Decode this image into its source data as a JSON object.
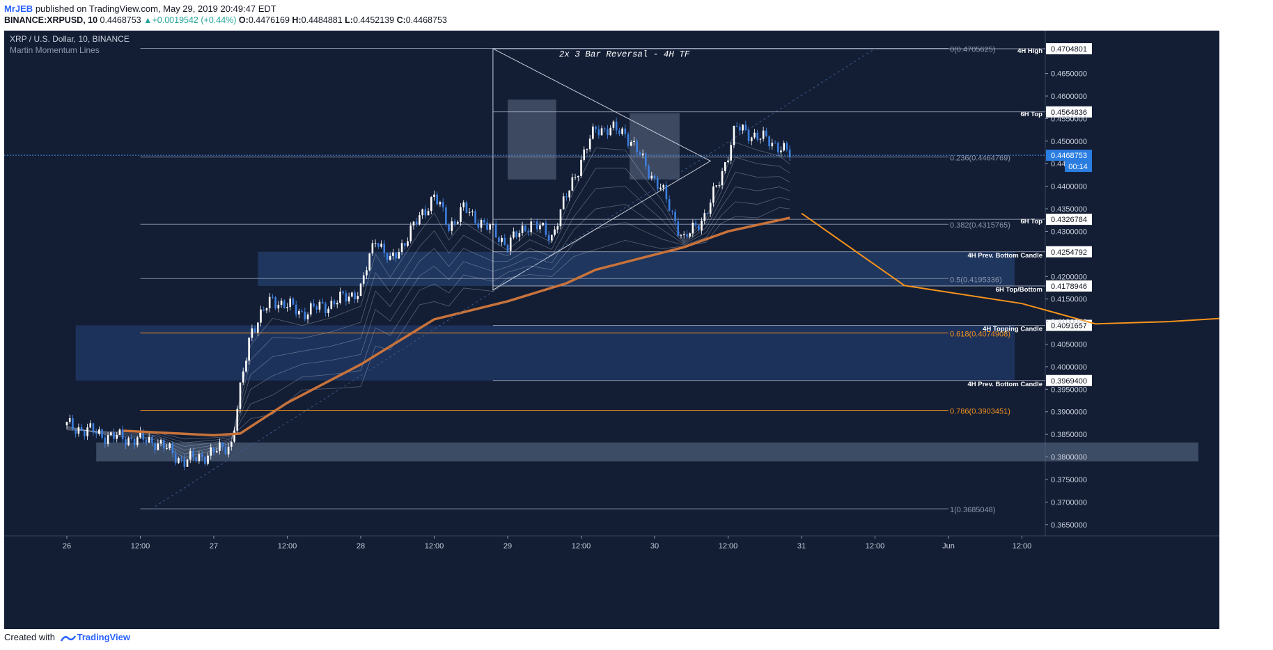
{
  "header": {
    "author": "MrJEB",
    "published_text": "published on TradingView.com, May 29, 2019 20:49:47 EDT",
    "symbol": "BINANCE:XRPUSD, 10",
    "last": "0.4468753",
    "change": "+0.0019542 (+0.44%)",
    "open_label": "O:",
    "open": "0.4476169",
    "high_label": "H:",
    "high": "0.4484881",
    "low_label": "L:",
    "low": "0.4452139",
    "close_label": "C:",
    "close": "0.4468753"
  },
  "footer": {
    "created_with": "Created with",
    "brand": "TradingView"
  },
  "chart_data": {
    "type": "candlestick",
    "title": "XRP / U.S. Dollar, 10, BINANCE",
    "indicator": "Martin Momentum Lines",
    "x_ticks": [
      "26",
      "12:00",
      "27",
      "12:00",
      "28",
      "12:00",
      "29",
      "12:00",
      "30",
      "12:00",
      "31",
      "12:00",
      "Jun",
      "12:00"
    ],
    "y_ticks": [
      "0.4650000",
      "0.4600000",
      "0.4550000",
      "0.4500000",
      "0.4450000",
      "0.4400000",
      "0.4350000",
      "0.4300000",
      "0.4200000",
      "0.4150000",
      "0.4100000",
      "0.4050000",
      "0.4000000",
      "0.3950000",
      "0.3900000",
      "0.3850000",
      "0.3800000",
      "0.3750000",
      "0.3700000",
      "0.3650000"
    ],
    "y_range": [
      0.3625,
      0.4745
    ],
    "current_price": "0.4468753",
    "countdown": "00:14",
    "annotation": "2x 3 Bar Reversal - 4H TF",
    "levels": [
      {
        "label": "4H High",
        "value": 0.4704801,
        "text": "0.4704801"
      },
      {
        "label": "6H Top",
        "value": 0.4564836,
        "text": "0.4564836"
      },
      {
        "label": "6H Top",
        "value": 0.4326784,
        "text": "0.4326784"
      },
      {
        "label": "4H Prev. Bottom Candle",
        "value": 0.4254792,
        "text": "0.4254792"
      },
      {
        "label": "6H Top/Bottom",
        "value": 0.4178946,
        "text": "0.4178946"
      },
      {
        "label": "4H Topping Candle",
        "value": 0.4091657,
        "text": "0.4091657"
      },
      {
        "label": "4H Prev. Bottom Candle",
        "value": 0.39694,
        "text": "0.3969400"
      }
    ],
    "fibonacci": [
      {
        "label": "0(0.4705625)",
        "value": 0.4705625
      },
      {
        "label": "0.236(0.4464769)",
        "value": 0.4464769
      },
      {
        "label": "0.382(0.4315765)",
        "value": 0.4315765
      },
      {
        "label": "0.5(0.4195336)",
        "value": 0.4195336
      },
      {
        "label": "0.618(0.4074908)",
        "value": 0.4074908
      },
      {
        "label": "0.786(0.3903451)",
        "value": 0.3903451
      },
      {
        "label": "1(0.3685048)",
        "value": 0.3685048
      }
    ],
    "moving_average_path": [
      [
        0.386,
        0.3858
      ],
      [
        1.0,
        0.3848
      ],
      [
        1.18,
        0.3852
      ],
      [
        1.5,
        0.392
      ],
      [
        2.0,
        0.4005
      ],
      [
        2.5,
        0.4105
      ],
      [
        3.0,
        0.4145
      ],
      [
        3.4,
        0.4185
      ],
      [
        3.6,
        0.4215
      ],
      [
        3.9,
        0.424
      ],
      [
        4.2,
        0.4265
      ],
      [
        4.5,
        0.43
      ],
      [
        4.92,
        0.433
      ]
    ],
    "price_path": [
      [
        0.0,
        0.387
      ],
      [
        0.3,
        0.3845
      ],
      [
        0.6,
        0.3835
      ],
      [
        0.8,
        0.379
      ],
      [
        1.0,
        0.381
      ],
      [
        1.12,
        0.383
      ],
      [
        1.25,
        0.408
      ],
      [
        1.4,
        0.415
      ],
      [
        1.6,
        0.412
      ],
      [
        1.8,
        0.414
      ],
      [
        2.0,
        0.417
      ],
      [
        2.1,
        0.429
      ],
      [
        2.2,
        0.423
      ],
      [
        2.4,
        0.433
      ],
      [
        2.5,
        0.438
      ],
      [
        2.6,
        0.431
      ],
      [
        2.7,
        0.435
      ],
      [
        2.9,
        0.43
      ],
      [
        3.0,
        0.427
      ],
      [
        3.15,
        0.432
      ],
      [
        3.3,
        0.429
      ],
      [
        3.45,
        0.442
      ],
      [
        3.6,
        0.453
      ],
      [
        3.8,
        0.452
      ],
      [
        3.95,
        0.444
      ],
      [
        4.05,
        0.439
      ],
      [
        4.2,
        0.428
      ],
      [
        4.35,
        0.434
      ],
      [
        4.45,
        0.442
      ],
      [
        4.55,
        0.453
      ],
      [
        4.7,
        0.451
      ],
      [
        4.85,
        0.449
      ],
      [
        4.92,
        0.4469
      ]
    ],
    "projection_curve": [
      [
        5.0,
        0.434
      ],
      [
        5.7,
        0.418
      ],
      [
        6.5,
        0.414
      ],
      [
        7.0,
        0.4095
      ],
      [
        7.5,
        0.41
      ],
      [
        8.0,
        0.411
      ],
      [
        8.5,
        0.413
      ]
    ]
  }
}
